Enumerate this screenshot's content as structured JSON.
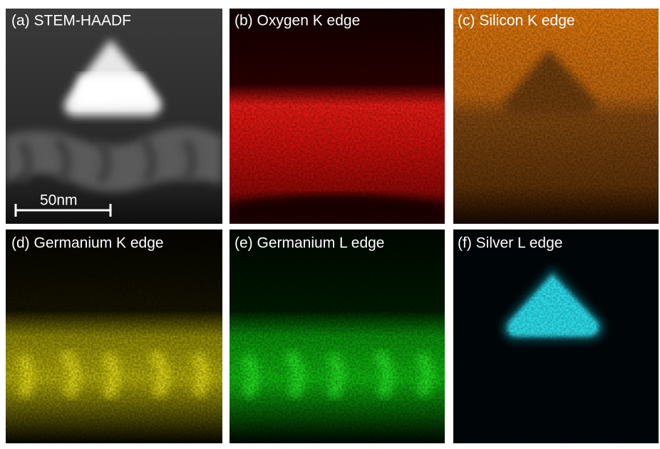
{
  "panels": [
    {
      "label": "(a) STEM-HAADF"
    },
    {
      "label": "(b) Oxygen K edge"
    },
    {
      "label": "(c) Silicon K edge"
    },
    {
      "label": "(d) Germanium K edge"
    },
    {
      "label": "(e) Germanium L edge"
    },
    {
      "label": "(f) Silver L edge"
    }
  ],
  "scale_bar": {
    "label": "50nm"
  }
}
